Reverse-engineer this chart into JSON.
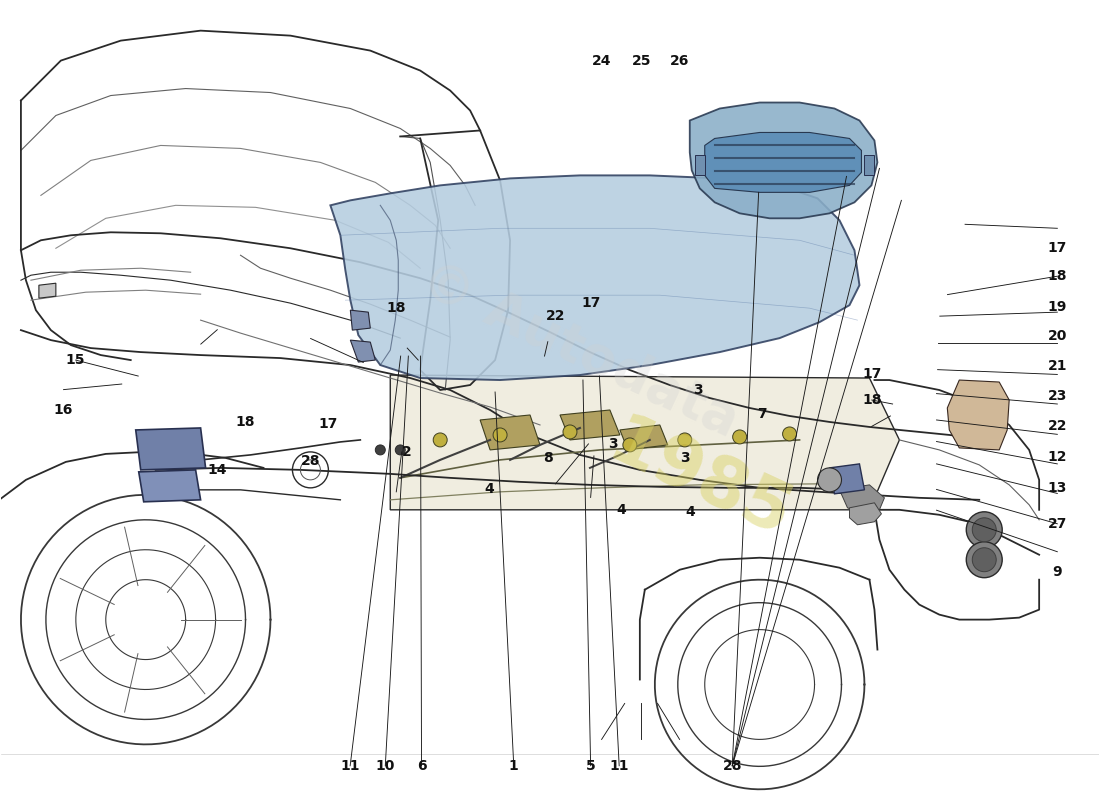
{
  "background_color": "#ffffff",
  "fig_width": 11.0,
  "fig_height": 8.0,
  "dpi": 100,
  "label_fontsize": 10,
  "label_fontweight": "bold",
  "line_color": "#2a2a2a",
  "lid_color": "#b5cde0",
  "lid2_color": "#8aaec8",
  "part_color_blue": "#6888a8",
  "engine_color": "#c8c090",
  "watermark_gray": "#d0d0d0",
  "watermark_yellow": "#d8d060",
  "top_labels": [
    {
      "num": "11",
      "fx": 0.318,
      "fy": 0.958
    },
    {
      "num": "10",
      "fx": 0.35,
      "fy": 0.958
    },
    {
      "num": "6",
      "fx": 0.383,
      "fy": 0.958
    },
    {
      "num": "1",
      "fx": 0.467,
      "fy": 0.958
    },
    {
      "num": "5",
      "fx": 0.537,
      "fy": 0.958
    },
    {
      "num": "11",
      "fx": 0.563,
      "fy": 0.958
    },
    {
      "num": "28",
      "fx": 0.666,
      "fy": 0.958
    }
  ],
  "right_labels": [
    {
      "num": "9",
      "fx": 0.962,
      "fy": 0.715
    },
    {
      "num": "27",
      "fx": 0.962,
      "fy": 0.655
    },
    {
      "num": "13",
      "fx": 0.962,
      "fy": 0.61
    },
    {
      "num": "12",
      "fx": 0.962,
      "fy": 0.572
    },
    {
      "num": "22",
      "fx": 0.962,
      "fy": 0.532
    },
    {
      "num": "23",
      "fx": 0.962,
      "fy": 0.495
    },
    {
      "num": "21",
      "fx": 0.962,
      "fy": 0.457
    },
    {
      "num": "20",
      "fx": 0.962,
      "fy": 0.42
    },
    {
      "num": "19",
      "fx": 0.962,
      "fy": 0.383
    },
    {
      "num": "18",
      "fx": 0.962,
      "fy": 0.345
    },
    {
      "num": "17",
      "fx": 0.962,
      "fy": 0.31
    }
  ],
  "interior_labels": [
    {
      "num": "2",
      "fx": 0.37,
      "fy": 0.565
    },
    {
      "num": "8",
      "fx": 0.498,
      "fy": 0.573
    },
    {
      "num": "4",
      "fx": 0.445,
      "fy": 0.612
    },
    {
      "num": "4",
      "fx": 0.565,
      "fy": 0.638
    },
    {
      "num": "4",
      "fx": 0.628,
      "fy": 0.64
    },
    {
      "num": "3",
      "fx": 0.557,
      "fy": 0.555
    },
    {
      "num": "3",
      "fx": 0.623,
      "fy": 0.573
    },
    {
      "num": "3",
      "fx": 0.635,
      "fy": 0.488
    },
    {
      "num": "7",
      "fx": 0.693,
      "fy": 0.517
    }
  ],
  "left_labels": [
    {
      "num": "14",
      "fx": 0.197,
      "fy": 0.588
    },
    {
      "num": "16",
      "fx": 0.057,
      "fy": 0.513
    },
    {
      "num": "15",
      "fx": 0.068,
      "fy": 0.45
    },
    {
      "num": "18",
      "fx": 0.222,
      "fy": 0.527
    },
    {
      "num": "17",
      "fx": 0.298,
      "fy": 0.53
    },
    {
      "num": "28",
      "fx": 0.282,
      "fy": 0.577
    }
  ],
  "bottom_labels": [
    {
      "num": "18",
      "fx": 0.36,
      "fy": 0.385
    },
    {
      "num": "22",
      "fx": 0.505,
      "fy": 0.395
    },
    {
      "num": "17",
      "fx": 0.537,
      "fy": 0.378
    },
    {
      "num": "17",
      "fx": 0.793,
      "fy": 0.467
    },
    {
      "num": "18",
      "fx": 0.793,
      "fy": 0.5
    },
    {
      "num": "24",
      "fx": 0.547,
      "fy": 0.075
    },
    {
      "num": "25",
      "fx": 0.583,
      "fy": 0.075
    },
    {
      "num": "26",
      "fx": 0.618,
      "fy": 0.075
    }
  ]
}
